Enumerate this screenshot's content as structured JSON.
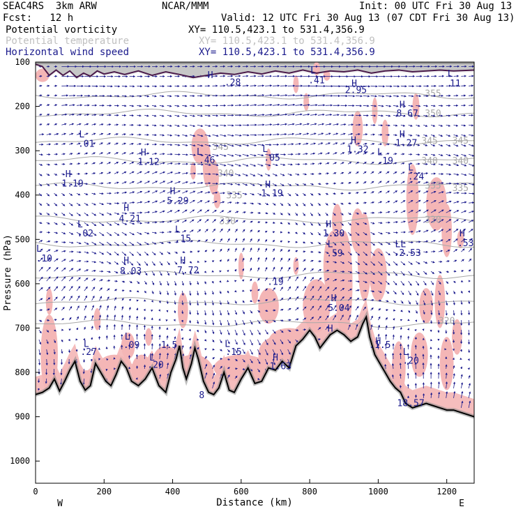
{
  "header": {
    "model": "SEAC4RS  3km ARW",
    "org": "NCAR/MMM",
    "init": "Init: 00 UTC Fri 30 Aug 13",
    "fcst": "Fcst:   12 h",
    "valid": "Valid: 12 UTC Fri 30 Aug 13 (07 CDT Fri 30 Aug 13)"
  },
  "fields": [
    {
      "label": "Potential vorticity",
      "xy": "XY= 110.5,423.1 to 531.4,356.9",
      "color": "#000000"
    },
    {
      "label": "Potential temperature",
      "xy": "XY= 110.5,423.1 to 531.4,356.9",
      "color": "#c0c0c0"
    },
    {
      "label": "Horizontal wind speed",
      "xy": "XY= 110.5,423.1 to 531.4,356.9",
      "color": "#1a1a8c"
    }
  ],
  "chart_data": {
    "type": "cross-section",
    "xlabel": "Distance (km)",
    "ylabel": "Pressure (hPa)",
    "xlim": [
      0,
      1280
    ],
    "ylim": [
      1050,
      100
    ],
    "x_ticks": [
      0,
      200,
      400,
      600,
      800,
      1000,
      1200
    ],
    "y_ticks": [
      100,
      200,
      300,
      400,
      500,
      600,
      700,
      800,
      900,
      1000
    ],
    "x_end_labels": {
      "left": "W",
      "right": "E"
    },
    "colors": {
      "pv": "#f4b6b6",
      "theta": "#a8a8a8",
      "wind": "#1a1a8c",
      "terrain": "#4a1a4a"
    },
    "theta_contours": [
      {
        "level": "355",
        "lx": 1160,
        "lp": 170
      },
      {
        "level": "350",
        "lx": 1160,
        "lp": 215
      },
      {
        "level": "345",
        "lx": 1150,
        "lp": 277
      },
      {
        "level": "340",
        "lx": 1150,
        "lp": 322
      },
      {
        "level": "335",
        "lx": 1160,
        "lp": 378
      },
      {
        "level": "330",
        "lx": 1160,
        "lp": 455
      },
      {
        "level": "320",
        "lx": 1200,
        "lp": 683
      },
      {
        "level": "345",
        "lx": 540,
        "lp": 290
      },
      {
        "level": "340",
        "lx": 555,
        "lp": 350
      },
      {
        "level": "335",
        "lx": 580,
        "lp": 400
      },
      {
        "level": "330",
        "lx": 560,
        "lp": 458
      },
      {
        "level": "345",
        "lx": 1240,
        "lp": 276
      },
      {
        "level": "340",
        "lx": 1240,
        "lp": 322
      },
      {
        "level": "335",
        "lx": 1240,
        "lp": 383
      }
    ],
    "hl_labels": [
      {
        "t": "L",
        "x": 135,
        "p": 262
      },
      {
        "t": ".01",
        "x": 148,
        "p": 283
      },
      {
        "t": "H",
        "x": 315,
        "p": 303
      },
      {
        "t": "1.12",
        "x": 330,
        "p": 324
      },
      {
        "t": "L",
        "x": 478,
        "p": 301
      },
      {
        "t": ".46",
        "x": 500,
        "p": 320
      },
      {
        "t": "L",
        "x": 670,
        "p": 295
      },
      {
        "t": ".05",
        "x": 690,
        "p": 315
      },
      {
        "t": "H",
        "x": 928,
        "p": 275
      },
      {
        "t": "1.32",
        "x": 940,
        "p": 296
      },
      {
        "t": "L",
        "x": 1005,
        "p": 302
      },
      {
        "t": ".19",
        "x": 1020,
        "p": 322
      },
      {
        "t": "H",
        "x": 1070,
        "p": 262
      },
      {
        "t": "1.27",
        "x": 1082,
        "p": 282
      },
      {
        "t": "L",
        "x": 1095,
        "p": 337
      },
      {
        "t": ".24",
        "x": 1110,
        "p": 357
      },
      {
        "t": "H",
        "x": 95,
        "p": 352
      },
      {
        "t": "1.19",
        "x": 108,
        "p": 373
      },
      {
        "t": "H",
        "x": 400,
        "p": 390
      },
      {
        "t": "5.29",
        "x": 415,
        "p": 412
      },
      {
        "t": "H",
        "x": 678,
        "p": 375
      },
      {
        "t": "1.19",
        "x": 690,
        "p": 395
      },
      {
        "t": "H",
        "x": 265,
        "p": 428
      },
      {
        "t": "4.21",
        "x": 275,
        "p": 452
      },
      {
        "t": "L",
        "x": 130,
        "p": 465
      },
      {
        "t": ".02",
        "x": 145,
        "p": 485
      },
      {
        "t": "L",
        "x": 415,
        "p": 477
      },
      {
        "t": ".15",
        "x": 430,
        "p": 497
      },
      {
        "t": "H",
        "x": 855,
        "p": 465
      },
      {
        "t": "1.30",
        "x": 870,
        "p": 485
      },
      {
        "t": "L",
        "x": 860,
        "p": 510
      },
      {
        "t": ".59",
        "x": 873,
        "p": 530
      },
      {
        "t": "H",
        "x": 1245,
        "p": 485
      },
      {
        "t": ".53",
        "x": 1255,
        "p": 507
      },
      {
        "t": "LL",
        "x": 1065,
        "p": 510
      },
      {
        "t": ".2.53",
        "x": 1085,
        "p": 529
      },
      {
        "t": "L",
        "x": 10,
        "p": 520
      },
      {
        "t": ".10",
        "x": 25,
        "p": 542
      },
      {
        "t": "H",
        "x": 265,
        "p": 547
      },
      {
        "t": "8.03",
        "x": 278,
        "p": 570
      },
      {
        "t": "H",
        "x": 430,
        "p": 547
      },
      {
        "t": "7.72",
        "x": 445,
        "p": 569
      },
      {
        "t": ".19",
        "x": 700,
        "p": 595
      },
      {
        "t": "H",
        "x": 870,
        "p": 632
      },
      {
        "t": "5.04",
        "x": 885,
        "p": 654
      },
      {
        "t": "L",
        "x": 148,
        "p": 735
      },
      {
        "t": ".27",
        "x": 155,
        "p": 753
      },
      {
        "t": "L",
        "x": 268,
        "p": 718
      },
      {
        "t": ".09",
        "x": 280,
        "p": 737
      },
      {
        "t": "1.5",
        "x": 390,
        "p": 737
      },
      {
        "t": "L",
        "x": 560,
        "p": 735
      },
      {
        "t": ".15",
        "x": 578,
        "p": 753
      },
      {
        "t": "L",
        "x": 340,
        "p": 765
      },
      {
        "t": ".20",
        "x": 350,
        "p": 782
      },
      {
        "t": "H",
        "x": 700,
        "p": 765
      },
      {
        "t": "1.63",
        "x": 715,
        "p": 785
      },
      {
        "t": ".1.5",
        "x": 1005,
        "p": 737
      },
      {
        "t": "L",
        "x": 1080,
        "p": 753
      },
      {
        "t": ".20",
        "x": 1095,
        "p": 772
      },
      {
        "t": "8",
        "x": 485,
        "p": 850
      },
      {
        "t": "18.57",
        "x": 1095,
        "p": 868
      },
      {
        "t": "H",
        "x": 510,
        "p": 128
      },
      {
        "t": ".28",
        "x": 575,
        "p": 145
      },
      {
        "t": ".41",
        "x": 820,
        "p": 140
      },
      {
        "t": "L",
        "x": 810,
        "p": 118
      },
      {
        "t": "H",
        "x": 930,
        "p": 147
      },
      {
        "t": "2.95",
        "x": 935,
        "p": 162
      },
      {
        "t": "H",
        "x": 1070,
        "p": 195
      },
      {
        "t": "8.67",
        "x": 1085,
        "p": 215
      },
      {
        "t": "L",
        "x": 1210,
        "p": 125
      },
      {
        "t": "11",
        "x": 1225,
        "p": 147
      },
      {
        "t": "H",
        "x": 1000,
        "p": 728
      },
      {
        "t": "H",
        "x": 860,
        "p": 700
      }
    ]
  }
}
